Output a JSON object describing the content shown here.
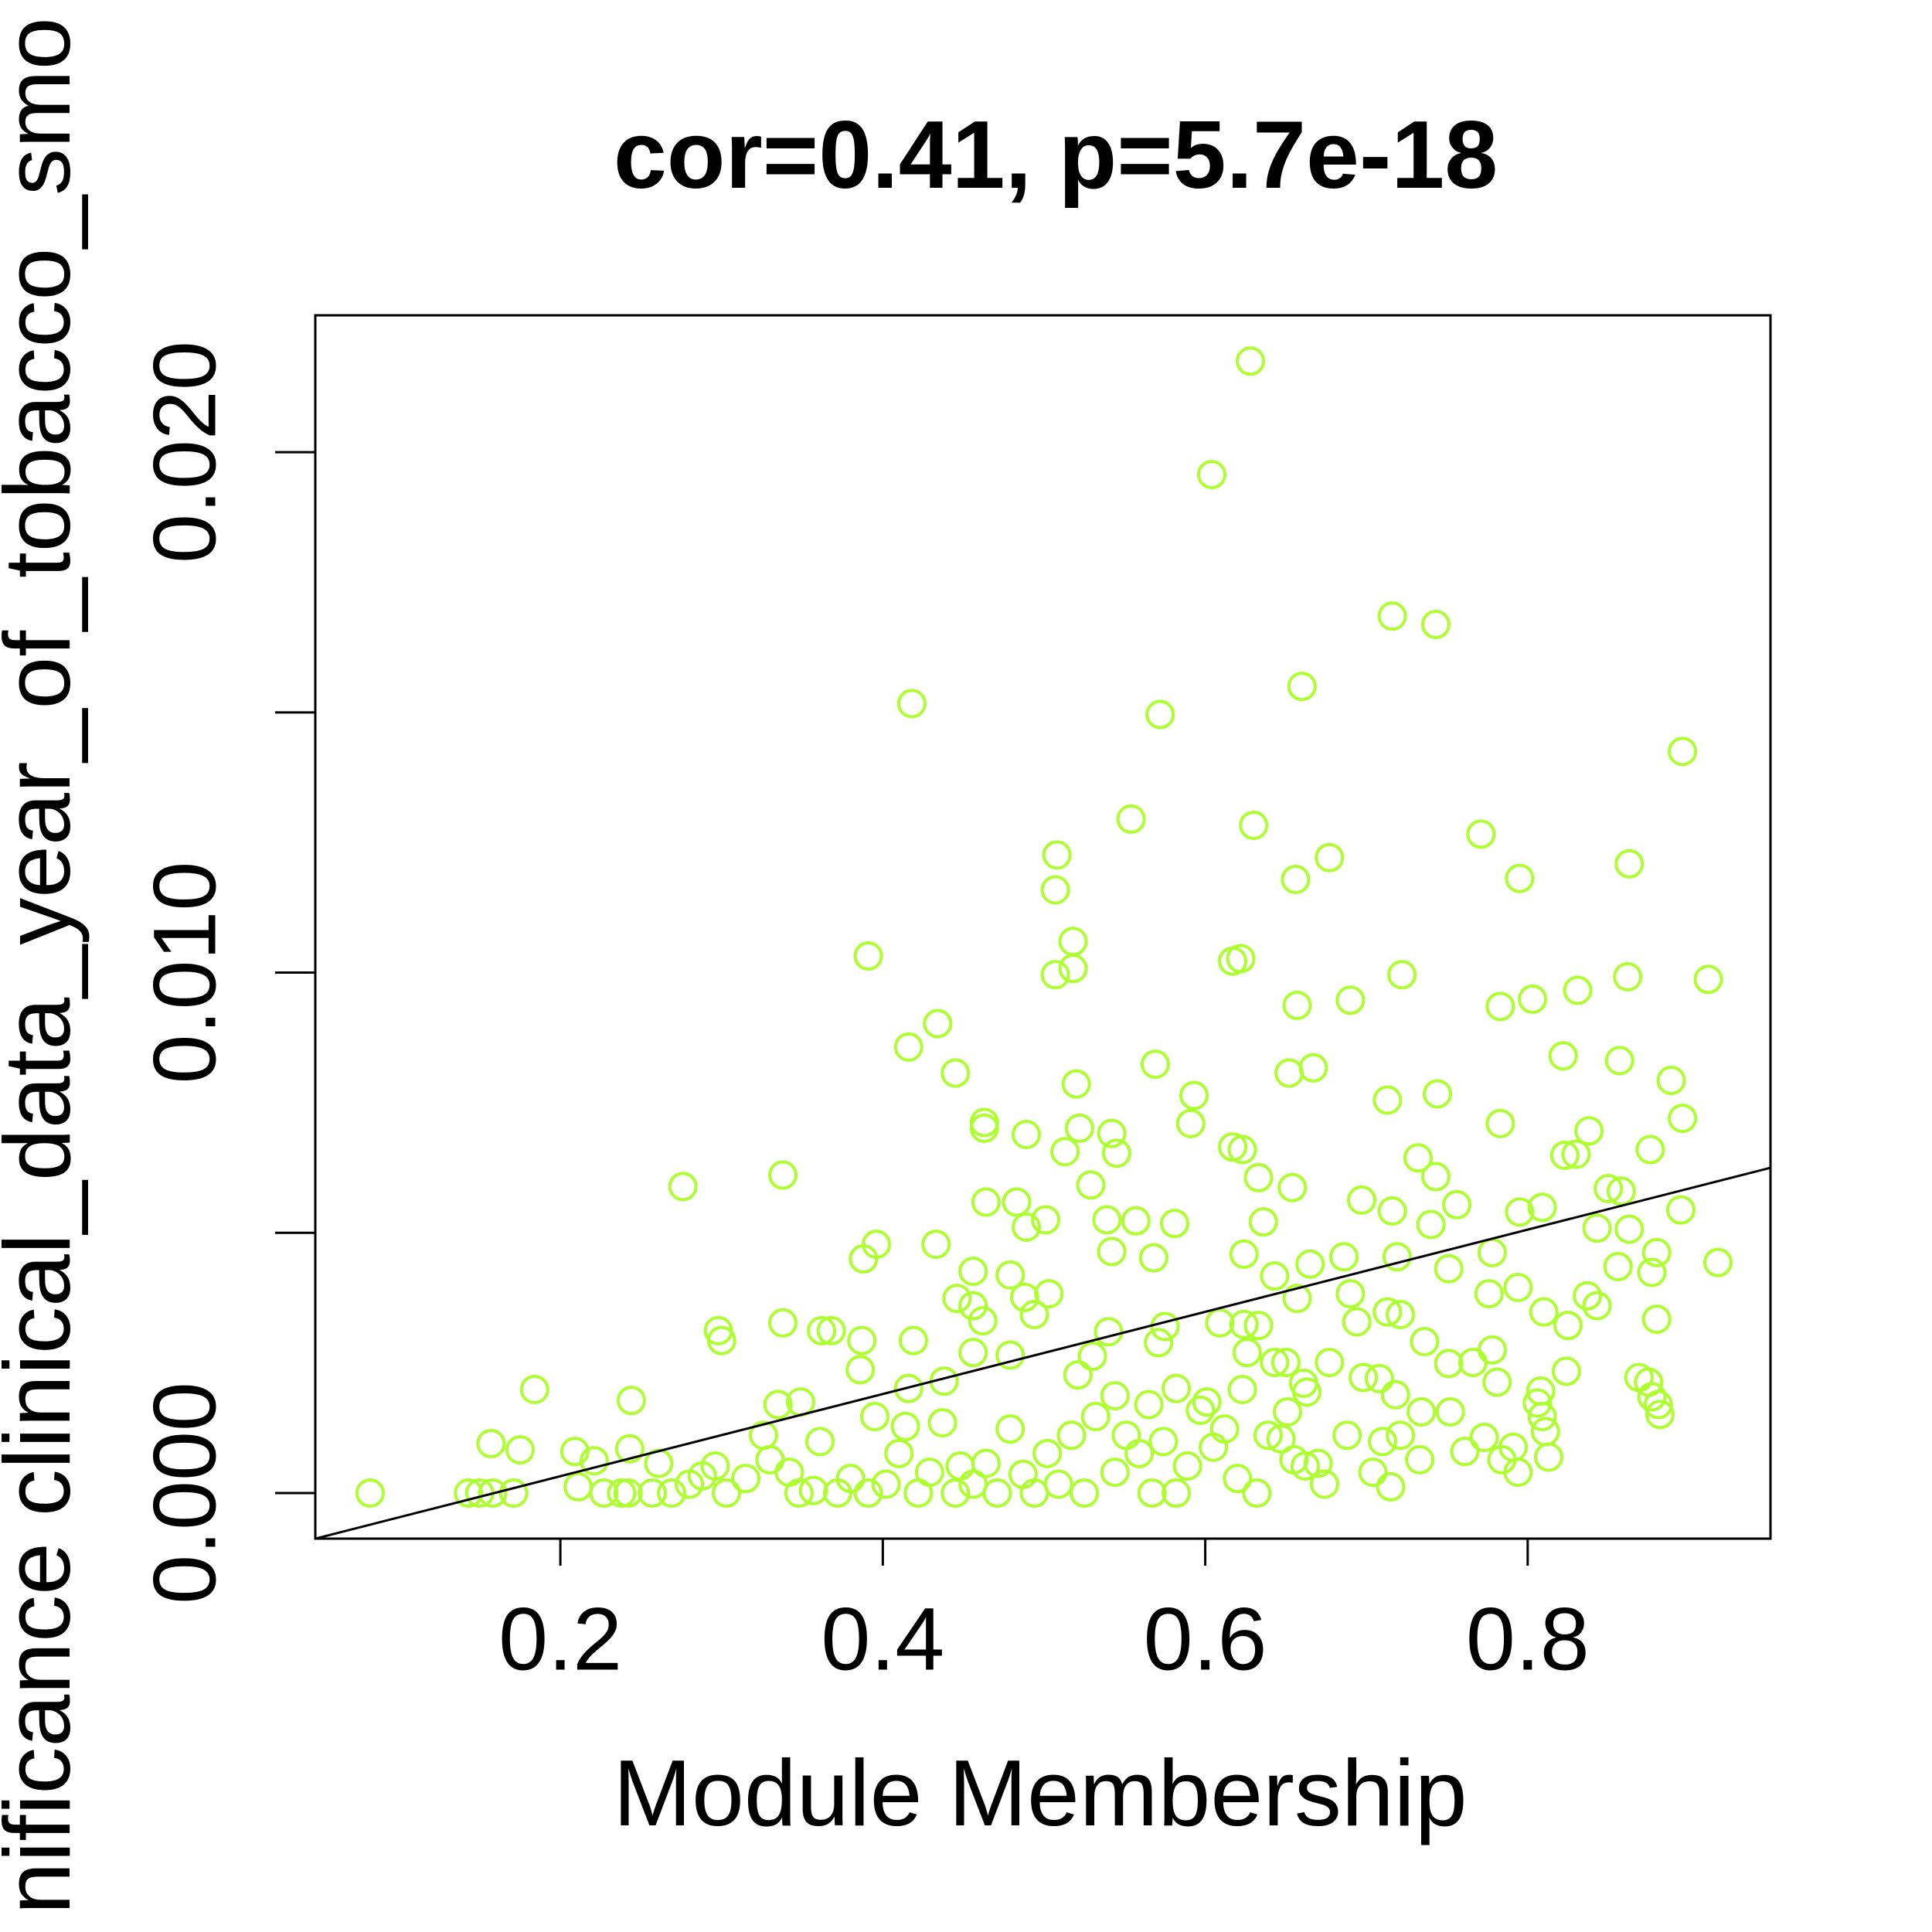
{
  "chart_data": {
    "type": "scatter",
    "title": "cor=0.41, p=5.7e-18",
    "x_label": "Module Membership",
    "y_label": "nificance clinical_data_year_of_tobacco_smo",
    "color": "#adff2f",
    "xlim": [
      0.048,
      0.9506
    ],
    "ylim": [
      -0.000876,
      0.02263
    ],
    "xticks": [
      0.2,
      0.4,
      0.6,
      0.8
    ],
    "yticks": [
      {
        "value": 0,
        "label": "0.000"
      },
      {
        "value": 0.005,
        "label": null
      },
      {
        "value": 0.01,
        "label": "0.010"
      },
      {
        "value": 0.015,
        "label": null
      },
      {
        "value": 0.02,
        "label": "0.020"
      }
    ],
    "fit": {
      "x": [
        0.048,
        0.9506
      ],
      "y": [
        -0.000876,
        0.00625
      ]
    },
    "x": [
      0.628,
      0.604,
      0.716,
      0.743,
      0.418,
      0.572,
      0.66,
      0.896,
      0.554,
      0.63,
      0.508,
      0.677,
      0.771,
      0.863,
      0.656,
      0.795,
      0.507,
      0.391,
      0.518,
      0.617,
      0.622,
      0.518,
      0.507,
      0.722,
      0.912,
      0.831,
      0.803,
      0.69,
      0.783,
      0.862,
      0.657,
      0.434,
      0.416,
      0.822,
      0.857,
      0.569,
      0.667,
      0.652,
      0.445,
      0.52,
      0.889,
      0.593,
      0.744,
      0.713,
      0.896,
      0.876,
      0.591,
      0.783,
      0.463,
      0.463,
      0.489,
      0.522,
      0.838,
      0.542,
      0.545,
      0.513,
      0.617,
      0.623,
      0.823,
      0.732,
      0.83,
      0.338,
      0.276,
      0.633,
      0.529,
      0.654,
      0.85,
      0.858,
      0.464,
      0.483,
      0.697,
      0.743,
      0.756,
      0.716,
      0.895,
      0.795,
      0.809,
      0.539,
      0.557,
      0.636,
      0.501,
      0.581,
      0.489,
      0.74,
      0.843,
      0.863,
      0.396,
      0.433,
      0.542,
      0.568,
      0.624,
      0.719,
      0.778,
      0.88,
      0.918,
      0.388,
      0.665,
      0.686,
      0.643,
      0.751,
      0.877,
      0.479,
      0.456,
      0.856,
      0.794,
      0.69,
      0.776,
      0.446,
      0.488,
      0.503,
      0.657,
      0.837,
      0.456,
      0.843,
      0.494,
      0.713,
      0.721,
      0.81,
      0.462,
      0.694,
      0.88,
      0.633,
      0.825,
      0.338,
      0.362,
      0.368,
      0.298,
      0.3,
      0.54,
      0.575,
      0.609,
      0.624,
      0.387,
      0.419,
      0.736,
      0.571,
      0.778,
      0.626,
      0.479,
      0.53,
      0.456,
      0.751,
      0.643,
      0.677,
      0.766,
      0.65,
      0.386,
      0.824,
      0.521,
      0.698,
      0.708,
      0.869,
      0.875,
      0.781,
      0.661,
      0.438,
      0.416,
      0.582,
      0.623,
      0.184,
      0.663,
      0.808,
      0.718,
      0.335,
      0.349,
      0.244,
      0.877,
      0.806,
      0.881,
      0.651,
      0.752,
      0.882,
      0.809,
      0.734,
      0.544,
      0.565,
      0.601,
      0.157,
      0.175,
      0.209,
      0.221,
      0.243,
      0.082,
      0.143,
      0.15,
      0.158,
      0.171,
      0.211,
      0.227,
      0.238,
      0.242,
      0.261,
      0.257,
      0.269,
      0.28,
      0.288,
      0.296,
      0.303,
      0.315,
      0.326,
      0.33,
      0.342,
      0.348,
      0.357,
      0.361,
      0.372,
      0.38,
      0.391,
      0.395,
      0.402,
      0.41,
      0.414,
      0.422,
      0.429,
      0.437,
      0.445,
      0.448,
      0.456,
      0.464,
      0.471,
      0.479,
      0.487,
      0.494,
      0.502,
      0.509,
      0.517,
      0.525,
      0.532,
      0.544,
      0.551,
      0.559,
      0.567,
      0.574,
      0.582,
      0.589,
      0.597,
      0.605,
      0.612,
      0.62,
      0.632,
      0.639,
      0.647,
      0.655,
      0.662,
      0.67,
      0.674,
      0.688,
      0.704,
      0.71,
      0.715,
      0.721,
      0.733,
      0.761,
      0.773,
      0.784,
      0.794,
      0.791,
      0.813,
      0.811
    ],
    "values": [
      0.02175,
      0.01957,
      0.01685,
      0.01669,
      0.01517,
      0.01496,
      0.0155,
      0.01425,
      0.01295,
      0.01283,
      0.01226,
      0.01221,
      0.01266,
      0.01209,
      0.01179,
      0.01181,
      0.01159,
      0.01032,
      0.0106,
      0.01022,
      0.01027,
      0.01008,
      0.00996,
      0.00996,
      0.00987,
      0.00966,
      0.00949,
      0.00947,
      0.00935,
      0.00992,
      0.00937,
      0.00902,
      0.00857,
      0.0084,
      0.00831,
      0.00824,
      0.00817,
      0.00807,
      0.00807,
      0.00786,
      0.00793,
      0.00764,
      0.00767,
      0.00755,
      0.0072,
      0.0066,
      0.0071,
      0.0071,
      0.00712,
      0.00701,
      0.00689,
      0.00701,
      0.00696,
      0.00691,
      0.00653,
      0.00656,
      0.00665,
      0.0066,
      0.00649,
      0.00644,
      0.00651,
      0.00611,
      0.00589,
      0.00606,
      0.00592,
      0.00587,
      0.00585,
      0.0058,
      0.00559,
      0.00559,
      0.00563,
      0.00608,
      0.00554,
      0.00542,
      0.00544,
      0.0054,
      0.00549,
      0.00525,
      0.00523,
      0.00521,
      0.00525,
      0.00518,
      0.00511,
      0.00516,
      0.00509,
      0.00507,
      0.00478,
      0.00478,
      0.00464,
      0.00452,
      0.00459,
      0.00454,
      0.00462,
      0.00462,
      0.00443,
      0.0045,
      0.0044,
      0.00454,
      0.00417,
      0.00431,
      0.00424,
      0.00419,
      0.00426,
      0.00435,
      0.00395,
      0.00383,
      0.00383,
      0.00374,
      0.00376,
      0.00383,
      0.00374,
      0.00379,
      0.0036,
      0.0036,
      0.00343,
      0.00348,
      0.00343,
      0.00348,
      0.00331,
      0.00329,
      0.00334,
      0.00322,
      0.00322,
      0.00327,
      0.00312,
      0.00312,
      0.00312,
      0.00293,
      0.0031,
      0.0032,
      0.00327,
      0.00324,
      0.00293,
      0.00293,
      0.00291,
      0.00289,
      0.00275,
      0.0027,
      0.00265,
      0.00263,
      0.0027,
      0.00249,
      0.00251,
      0.00251,
      0.00251,
      0.00251,
      0.00237,
      0.00234,
      0.00227,
      0.00222,
      0.0022,
      0.00222,
      0.00213,
      0.00213,
      0.00211,
      0.00215,
      0.00201,
      0.00201,
      0.00199,
      0.00199,
      0.00194,
      0.00196,
      0.00189,
      0.0017,
      0.00175,
      0.00178,
      0.00185,
      0.00173,
      0.0017,
      0.00156,
      0.00156,
      0.00151,
      0.00147,
      0.00156,
      0.00187,
      0.0017,
      0.00175,
      0.00095,
      0.00083,
      0.0008,
      0.00062,
      0.00085,
      0,
      0,
      0,
      0,
      0,
      0.00012,
      0,
      0,
      0,
      0.00057,
      0,
      0,
      0.00017,
      0.00033,
      0.00052,
      0,
      0.00028,
      0.00111,
      0.00064,
      0.0004,
      0,
      5e-05,
      0.00099,
      0,
      0.00028,
      0,
      0.00147,
      0.00017,
      0.00076,
      0.00128,
      0,
      0.0004,
      0.00135,
      0,
      0.00052,
      0.00017,
      0.00057,
      0,
      0.00123,
      0.00036,
      0,
      0.00076,
      0.00017,
      0.00111,
      0,
      0.00147,
      0.0004,
      0.00111,
      0.00076,
      0,
      0.00099,
      0,
      0.00052,
      0.00159,
      0.00088,
      0.00123,
      0.00028,
      0,
      0.00111,
      0.00104,
      0.00064,
      0.00052,
      0.00057,
      0.00017,
      0.00111,
      0.0004,
      0.00099,
      0.00012,
      0.00111,
      0.00064,
      0.0008,
      0.00107,
      0.00064,
      0.0004,
      0.00088,
      0.00069,
      0.00118
    ]
  }
}
